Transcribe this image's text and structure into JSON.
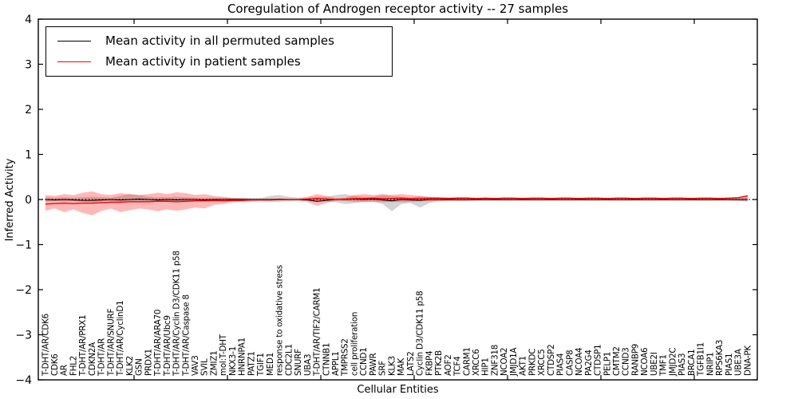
{
  "title": "Coregulation of Androgen receptor activity -- 27 samples",
  "axes": {
    "xlabel": "Cellular Entities",
    "ylabel": "Inferred Activity",
    "ylim": [
      -4,
      4
    ],
    "yticks": [
      -4,
      -3,
      -2,
      -1,
      0,
      1,
      2,
      3,
      4
    ],
    "grid": false
  },
  "legend": {
    "position": "upper left",
    "items": [
      {
        "label": "Mean activity in all permuted samples",
        "color": "#000000"
      },
      {
        "label": "Mean activity in patient samples",
        "color": "#ff0000"
      }
    ]
  },
  "colors": {
    "background": "#ffffff",
    "axis": "#000000",
    "permuted_line": "#000000",
    "patient_line": "#ff0000",
    "permuted_band": "rgba(128,128,128,0.35)",
    "patient_band": "rgba(255,0,0,0.28)"
  },
  "chart_data": {
    "type": "line",
    "title": "Coregulation of Androgen receptor activity -- 27 samples",
    "xlabel": "Cellular Entities",
    "ylabel": "Inferred Activity",
    "ylim": [
      -4,
      4
    ],
    "yticks": [
      -4,
      -3,
      -2,
      -1,
      0,
      1,
      2,
      3,
      4
    ],
    "grid": false,
    "legend_position": "upper left",
    "zero_line": {
      "y": 0,
      "style": "dotted",
      "color": "#000000"
    },
    "categories": [
      "T-DHT/AR/CDK6",
      "CDK6",
      "AR",
      "FHL2",
      "T-DHT/AR/PRX1",
      "CDKN2A",
      "T-DHT/AR",
      "T-DHT/AR/SNURF",
      "T-DHT/AR/CyclinD1",
      "KLK2",
      "GSN",
      "PRDX1",
      "T-DHT/AR/ARA70",
      "T-DHT/AR/Ubc9",
      "T-DHT/AR/Cyclin D3/CDK11 p58",
      "T-DHT/AR/Caspase 8",
      "VAV3",
      "SVIL",
      "ZMIZ1",
      "mol:T-DHT",
      "NKX3-1",
      "HNRNPA1",
      "PATZ1",
      "TGIF1",
      "MED1",
      "response to oxidative stress",
      "CDC2L1",
      "SNURF",
      "UBA3",
      "T-DHT/AR/TIF2/CARM1",
      "CTNNB1",
      "APPL1",
      "TMPRSS2",
      "cell proliferation",
      "CCND1",
      "PAWR",
      "SRF",
      "KLK3",
      "MAK",
      "LATS2",
      "Cyclin D3/CDK11 p58",
      "FKBP4",
      "PTK2B",
      "AOF2",
      "TCF4",
      "CARM1",
      "XRCC6",
      "HIP1",
      "ZNF318",
      "NCOA2",
      "JMJD1A",
      "AKT1",
      "PRKDC",
      "XRCC5",
      "CTDSP2",
      "PIAS4",
      "CASP8",
      "NCOA4",
      "PA2G4",
      "CTDSP1",
      "PELP1",
      "CMTM2",
      "CCND3",
      "RANBP9",
      "NCOA6",
      "UBE2I",
      "TMF1",
      "JMJD2C",
      "PIAS3",
      "BRCA1",
      "TGFB1I1",
      "NRIP1",
      "RPS6KA3",
      "PIAS1",
      "UBE3A",
      "DNA-PK"
    ],
    "series": [
      {
        "name": "Mean activity in all permuted samples",
        "color": "#000000",
        "values": [
          0,
          -0.01,
          0,
          -0.01,
          -0.02,
          -0.02,
          -0.01,
          0,
          -0.01,
          0,
          0.01,
          0,
          -0.01,
          0,
          -0.01,
          0,
          0,
          -0.01,
          0,
          0,
          0,
          0,
          0,
          0,
          0,
          0.01,
          0,
          0,
          -0.01,
          -0.04,
          -0.02,
          0,
          0,
          0.01,
          0,
          0.01,
          -0.01,
          -0.03,
          0,
          -0.01,
          -0.02,
          0,
          0,
          0,
          0,
          0,
          0,
          0,
          0,
          0,
          0,
          0,
          0,
          0,
          0,
          0,
          0,
          0,
          0,
          0,
          0,
          0,
          0,
          0,
          0,
          0,
          0,
          0,
          0,
          0,
          0,
          0,
          0,
          0,
          0,
          0
        ]
      },
      {
        "name": "Mean activity in patient samples",
        "color": "#ff0000",
        "values": [
          -0.1,
          -0.09,
          -0.08,
          -0.09,
          -0.08,
          -0.08,
          -0.07,
          -0.06,
          -0.06,
          -0.05,
          -0.05,
          -0.05,
          -0.04,
          -0.04,
          -0.05,
          -0.04,
          -0.03,
          -0.03,
          -0.02,
          -0.03,
          -0.02,
          -0.02,
          -0.01,
          -0.01,
          -0.01,
          0,
          0,
          0,
          0.01,
          0.02,
          0.01,
          0,
          0.01,
          0.02,
          0.02,
          0.03,
          0.02,
          0.02,
          0.03,
          0.02,
          0.02,
          0.03,
          0.03,
          0.02,
          0.03,
          0.03,
          0.02,
          0.03,
          0.02,
          0.03,
          0.03,
          0.02,
          0.03,
          0.03,
          0.02,
          0.03,
          0.03,
          0.02,
          0.03,
          0.03,
          0.02,
          0.03,
          0.03,
          0.02,
          0.03,
          0.03,
          0.02,
          0.03,
          0.03,
          0.02,
          0.03,
          0.03,
          0.02,
          0.03,
          0.04,
          0.08
        ]
      }
    ],
    "bands": [
      {
        "name": "permuted samples range",
        "color": "rgba(128,128,128,0.35)",
        "upper": [
          0.05,
          0.04,
          0.05,
          0.04,
          0.05,
          0.06,
          0.05,
          0.04,
          0.08,
          0.12,
          0.1,
          0.06,
          0.05,
          0.05,
          0.06,
          0.05,
          0.04,
          0.04,
          0.04,
          0.04,
          0.03,
          0.03,
          0.03,
          0.03,
          0.08,
          0.1,
          0.06,
          0.04,
          0.04,
          0.06,
          0.06,
          0.1,
          0.12,
          0.08,
          0.06,
          0.06,
          0.1,
          0.08,
          0.06,
          0.04,
          0.08,
          0.04,
          0.03,
          0.03,
          0.03,
          0.03,
          0.03,
          0.03,
          0.03,
          0.03,
          0.03,
          0.03,
          0.03,
          0.03,
          0.03,
          0.03,
          0.03,
          0.03,
          0.03,
          0.03,
          0.03,
          0.03,
          0.03,
          0.03,
          0.03,
          0.03,
          0.03,
          0.03,
          0.03,
          0.03,
          0.03,
          0.03,
          0.03,
          0.03,
          0.03,
          0.04
        ],
        "lower": [
          -0.05,
          -0.04,
          -0.05,
          -0.04,
          -0.05,
          -0.06,
          -0.05,
          -0.04,
          -0.05,
          -0.06,
          -0.05,
          -0.04,
          -0.05,
          -0.04,
          -0.05,
          -0.04,
          -0.04,
          -0.04,
          -0.04,
          -0.04,
          -0.03,
          -0.03,
          -0.03,
          -0.03,
          -0.04,
          -0.05,
          -0.04,
          -0.03,
          -0.03,
          -0.05,
          -0.04,
          -0.06,
          -0.1,
          -0.08,
          -0.05,
          -0.05,
          -0.1,
          -0.26,
          -0.1,
          -0.08,
          -0.18,
          -0.08,
          -0.04,
          -0.03,
          -0.03,
          -0.03,
          -0.03,
          -0.03,
          -0.03,
          -0.03,
          -0.03,
          -0.03,
          -0.03,
          -0.03,
          -0.03,
          -0.03,
          -0.03,
          -0.03,
          -0.03,
          -0.03,
          -0.03,
          -0.03,
          -0.03,
          -0.03,
          -0.03,
          -0.03,
          -0.03,
          -0.03,
          -0.03,
          -0.03,
          -0.03,
          -0.03,
          -0.03,
          -0.03,
          -0.03,
          -0.04
        ]
      },
      {
        "name": "patient samples range",
        "color": "rgba(255,0,0,0.28)",
        "upper": [
          0.1,
          0.08,
          0.12,
          0.1,
          0.15,
          0.18,
          0.12,
          0.1,
          0.14,
          0.12,
          0.1,
          0.12,
          0.15,
          0.12,
          0.16,
          0.14,
          0.1,
          0.12,
          0.08,
          0.06,
          0.04,
          0.03,
          0.02,
          0.02,
          0.02,
          0.02,
          0.02,
          0.02,
          0.06,
          0.12,
          0.08,
          0.03,
          0.04,
          0.1,
          0.12,
          0.1,
          0.12,
          0.1,
          0.12,
          0.1,
          0.08,
          0.06,
          0.05,
          0.05,
          0.05,
          0.05,
          0.04,
          0.04,
          0.04,
          0.04,
          0.04,
          0.04,
          0.04,
          0.04,
          0.04,
          0.04,
          0.04,
          0.04,
          0.04,
          0.04,
          0.04,
          0.04,
          0.04,
          0.04,
          0.04,
          0.04,
          0.04,
          0.04,
          0.04,
          0.04,
          0.04,
          0.04,
          0.04,
          0.04,
          0.05,
          0.1
        ],
        "lower": [
          -0.25,
          -0.2,
          -0.28,
          -0.22,
          -0.3,
          -0.35,
          -0.25,
          -0.2,
          -0.28,
          -0.24,
          -0.2,
          -0.22,
          -0.26,
          -0.22,
          -0.25,
          -0.22,
          -0.18,
          -0.2,
          -0.12,
          -0.1,
          -0.06,
          -0.05,
          -0.04,
          -0.03,
          -0.03,
          -0.02,
          -0.02,
          -0.02,
          -0.06,
          -0.14,
          -0.08,
          -0.03,
          -0.03,
          -0.05,
          -0.06,
          -0.05,
          -0.06,
          -0.05,
          -0.06,
          -0.05,
          -0.04,
          -0.04,
          -0.03,
          -0.03,
          -0.03,
          -0.03,
          -0.02,
          -0.02,
          -0.02,
          -0.02,
          -0.02,
          -0.02,
          -0.02,
          -0.02,
          -0.02,
          -0.02,
          -0.02,
          -0.02,
          -0.02,
          -0.02,
          -0.02,
          -0.02,
          -0.02,
          -0.02,
          -0.02,
          -0.02,
          -0.02,
          -0.02,
          -0.02,
          -0.02,
          -0.02,
          -0.02,
          -0.02,
          -0.02,
          -0.03,
          -0.04
        ]
      }
    ]
  }
}
